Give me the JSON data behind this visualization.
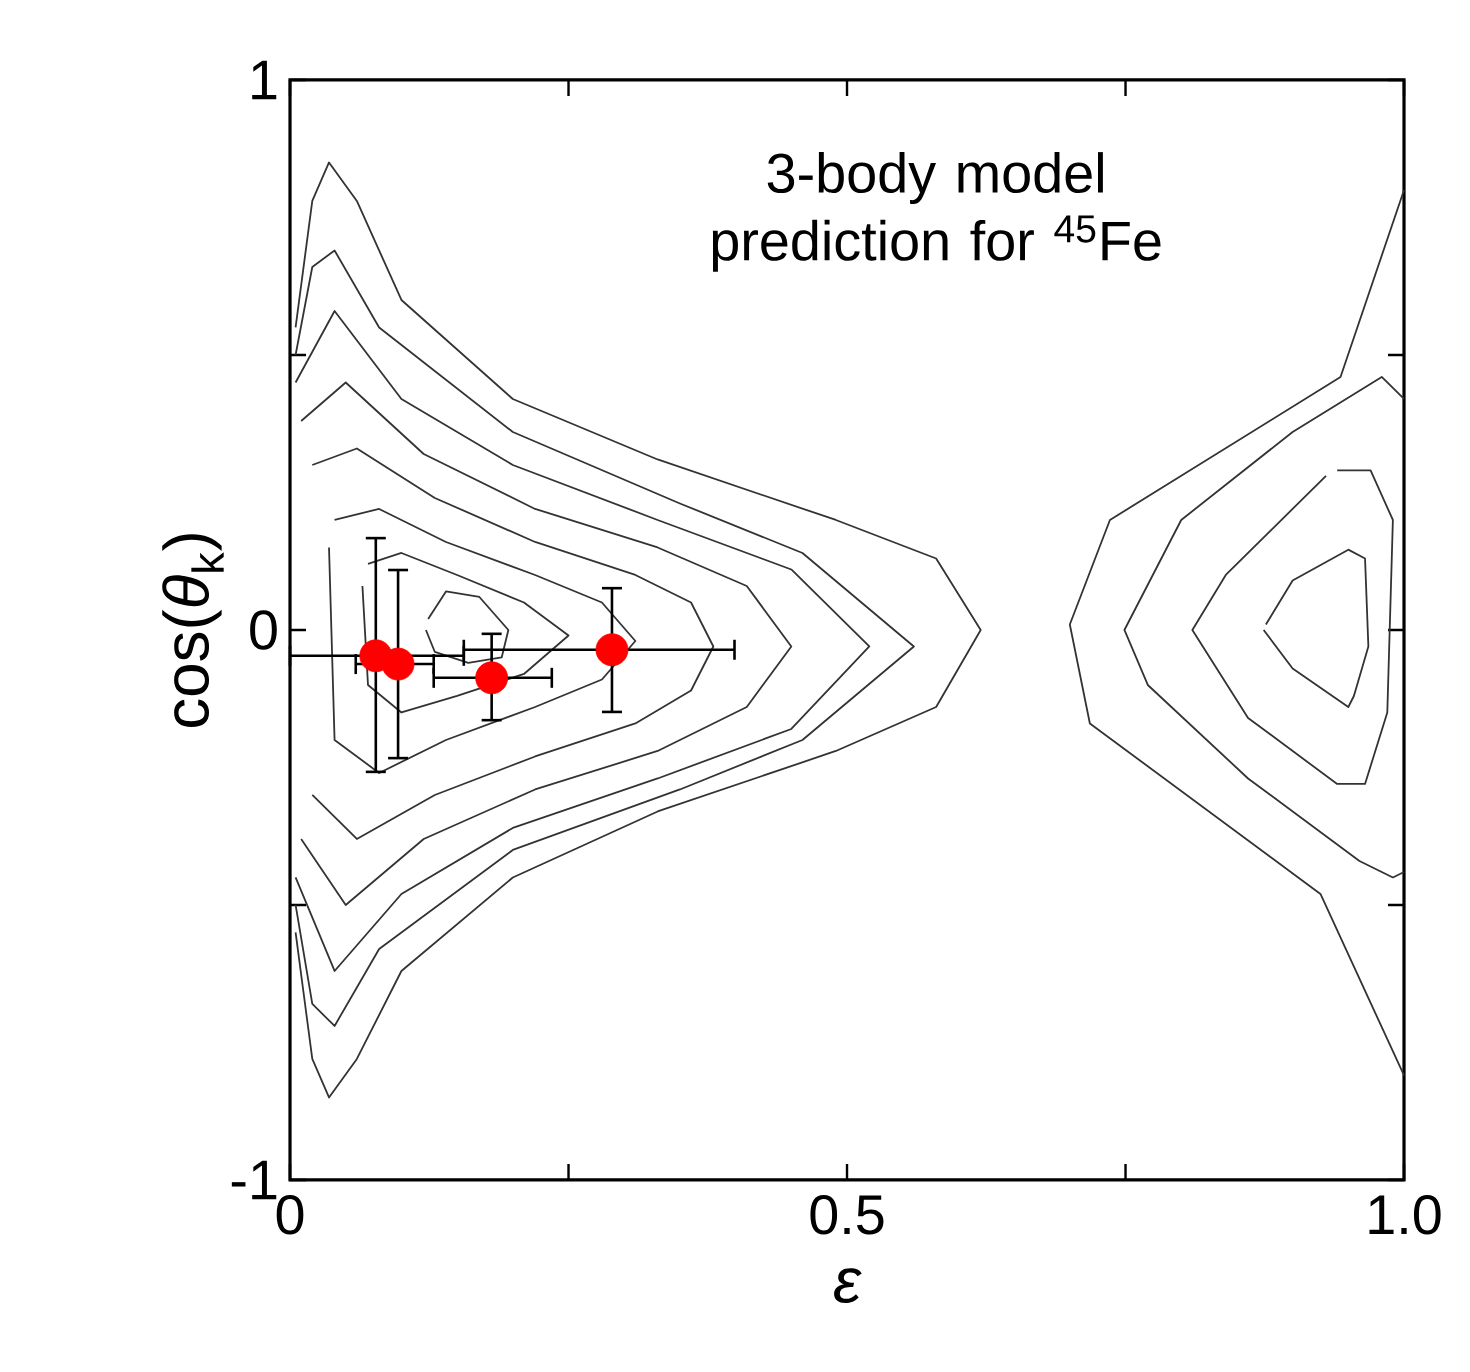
{
  "chart_data": {
    "type": "line",
    "xlabel": "ε",
    "ylabel": "cos(*θ*$_{k}$)",
    "annotations": [
      "3-body model prediction for $^{45}$Fe"
    ],
    "xlim": [
      0,
      1
    ],
    "ylim": [
      -1,
      1
    ],
    "xticks": [
      0,
      {
        "value": 0.25,
        "label": null
      },
      0.5,
      {
        "value": 0.75,
        "label": null
      },
      {
        "value": 1,
        "label": "1.0"
      }
    ],
    "yticks": [
      -1,
      {
        "value": -0.5,
        "label": null
      },
      0,
      {
        "value": 0.5,
        "label": null
      },
      1
    ],
    "grid": false,
    "series": [
      {
        "color": "#333333",
        "x": [
          0.005,
          0.02,
          0.035,
          0.06,
          0.1,
          0.2,
          0.33,
          0.49,
          0.58,
          0.62,
          0.58,
          0.49,
          0.33,
          0.2,
          0.1,
          0.06,
          0.035,
          0.02,
          0.005
        ],
        "values": [
          0.55,
          0.78,
          0.85,
          0.78,
          0.6,
          0.42,
          0.31,
          0.2,
          0.13,
          0,
          -0.14,
          -0.22,
          -0.33,
          -0.45,
          -0.62,
          -0.78,
          -0.85,
          -0.78,
          -0.55
        ]
      },
      {
        "color": "#333333",
        "x": [
          0.005,
          0.02,
          0.04,
          0.08,
          0.2,
          0.35,
          0.46,
          0.56,
          0.46,
          0.35,
          0.2,
          0.08,
          0.04,
          0.02,
          0.005
        ],
        "values": [
          0.5,
          0.66,
          0.69,
          0.55,
          0.36,
          0.23,
          0.14,
          -0.03,
          -0.2,
          -0.29,
          -0.4,
          -0.58,
          -0.72,
          -0.68,
          -0.5
        ]
      },
      {
        "color": "#333333",
        "x": [
          0.005,
          0.04,
          0.1,
          0.2,
          0.33,
          0.45,
          0.52,
          0.45,
          0.33,
          0.2,
          0.1,
          0.04,
          0.005
        ],
        "values": [
          0.45,
          0.58,
          0.42,
          0.3,
          0.2,
          0.11,
          -0.03,
          -0.18,
          -0.27,
          -0.36,
          -0.48,
          -0.62,
          -0.45
        ]
      },
      {
        "color": "#333333",
        "x": [
          0.01,
          0.05,
          0.12,
          0.22,
          0.33,
          0.41,
          0.45,
          0.41,
          0.33,
          0.22,
          0.12,
          0.05,
          0.01
        ],
        "values": [
          0.38,
          0.45,
          0.32,
          0.22,
          0.15,
          0.08,
          -0.03,
          -0.14,
          -0.22,
          -0.29,
          -0.38,
          -0.5,
          -0.38
        ]
      },
      {
        "color": "#333333",
        "x": [
          0.02,
          0.06,
          0.13,
          0.22,
          0.31,
          0.36,
          0.38,
          0.36,
          0.31,
          0.22,
          0.13,
          0.06,
          0.02
        ],
        "values": [
          0.3,
          0.33,
          0.24,
          0.16,
          0.1,
          0.05,
          -0.03,
          -0.11,
          -0.17,
          -0.23,
          -0.3,
          -0.38,
          -0.3
        ]
      },
      {
        "color": "#333333",
        "x": [
          0.04,
          0.08,
          0.14,
          0.22,
          0.28,
          0.31,
          0.28,
          0.22,
          0.14,
          0.08,
          0.04,
          0.035
        ],
        "values": [
          0.2,
          0.22,
          0.16,
          0.1,
          0.05,
          -0.02,
          -0.09,
          -0.14,
          -0.2,
          -0.26,
          -0.2,
          0.15
        ]
      },
      {
        "color": "#333333",
        "x": [
          0.07,
          0.1,
          0.15,
          0.21,
          0.25,
          0.21,
          0.15,
          0.1,
          0.07,
          0.065
        ],
        "values": [
          0.12,
          0.14,
          0.1,
          0.05,
          -0.01,
          -0.08,
          -0.12,
          -0.15,
          -0.1,
          0.08
        ]
      },
      {
        "color": "#333333",
        "x": [
          0.124,
          0.14,
          0.17,
          0.196,
          0.19,
          0.16,
          0.13,
          0.122
        ],
        "values": [
          0.02,
          0.07,
          0.06,
          0.0,
          -0.05,
          -0.06,
          -0.04,
          0.0
        ]
      },
      {
        "color": "#333333",
        "x": [
          1.0,
          0.943,
          0.736,
          0.7,
          0.718,
          0.925,
          1.0
        ],
        "values": [
          0.8,
          0.46,
          0.2,
          0.01,
          -0.17,
          -0.48,
          -0.81
        ]
      },
      {
        "color": "#333333",
        "x": [
          1.0,
          0.98,
          0.9,
          0.8,
          0.749,
          0.77,
          0.86,
          0.96,
          0.99,
          1.0
        ],
        "values": [
          0.42,
          0.46,
          0.36,
          0.2,
          0.0,
          -0.1,
          -0.27,
          -0.42,
          -0.45,
          -0.44
        ]
      },
      {
        "color": "#333333",
        "x": [
          0.94,
          0.97,
          0.99,
          0.985,
          0.965,
          0.94,
          0.86,
          0.81,
          0.84,
          0.9,
          0.93
        ],
        "values": [
          0.29,
          0.29,
          0.2,
          -0.15,
          -0.28,
          -0.28,
          -0.16,
          0.0,
          0.1,
          0.22,
          0.28
        ]
      },
      {
        "color": "#333333",
        "x": [
          0.876,
          0.9,
          0.95,
          0.965,
          0.968,
          0.955,
          0.95,
          0.9,
          0.874
        ],
        "values": [
          0.01,
          0.09,
          0.146,
          0.13,
          -0.03,
          -0.12,
          -0.14,
          -0.07,
          0.0
        ]
      },
      {
        "type": "scatter",
        "color": "#ff0000",
        "x": [
          0.077,
          0.097,
          0.181,
          0.289
        ],
        "values": [
          -0.047,
          -0.062,
          -0.087,
          -0.036
        ],
        "errors": [
          [
            -0.258,
            0.167
          ],
          [
            -0.233,
            0.109
          ],
          [
            -0.164,
            -0.007
          ],
          [
            -0.149,
            0.076
          ]
        ],
        "xerrors": [
          [
            0.0,
            0.156
          ],
          [
            0.059,
            0.129
          ],
          [
            0.129,
            0.235
          ],
          [
            0.156,
            0.399
          ]
        ]
      }
    ]
  }
}
